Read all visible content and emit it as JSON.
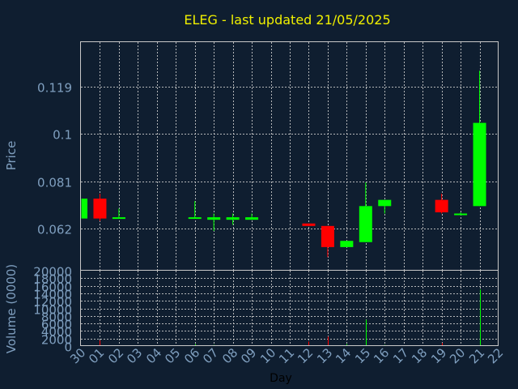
{
  "chart_data": {
    "type": "candlestick",
    "title": "ELEG - last updated 21/05/2025",
    "price_axis": {
      "label": "Price",
      "ylim": [
        0.045,
        0.137
      ],
      "ticks": [
        0.062,
        0.081,
        0.1,
        0.119
      ]
    },
    "volume_axis": {
      "label": "Volume (0000)",
      "ylim": [
        0,
        20000
      ],
      "ticks": [
        0,
        2000,
        4000,
        6000,
        8000,
        10000,
        12000,
        14000,
        16000,
        18000,
        20000
      ]
    },
    "xlabel": "Day",
    "days": [
      "30",
      "01",
      "02",
      "03",
      "04",
      "05",
      "06",
      "07",
      "08",
      "09",
      "10",
      "11",
      "12",
      "13",
      "14",
      "15",
      "16",
      "17",
      "18",
      "19",
      "20",
      "21",
      "22"
    ],
    "grid": true,
    "colors": {
      "up": "#00ff00",
      "down": "#ff0000",
      "background": "#0f1e30",
      "title": "#f0f000",
      "axis_text": "#7f9fbf"
    },
    "candles": [
      {
        "day": "30",
        "open": 0.066,
        "high": 0.074,
        "low": 0.066,
        "close": 0.074
      },
      {
        "day": "01",
        "open": 0.074,
        "high": 0.076,
        "low": 0.065,
        "close": 0.066
      },
      {
        "day": "02",
        "open": 0.066,
        "high": 0.07,
        "low": 0.066,
        "close": 0.0665
      },
      {
        "day": "06",
        "open": 0.066,
        "high": 0.073,
        "low": 0.066,
        "close": 0.0665
      },
      {
        "day": "07",
        "open": 0.0655,
        "high": 0.068,
        "low": 0.061,
        "close": 0.0665
      },
      {
        "day": "08",
        "open": 0.0655,
        "high": 0.068,
        "low": 0.0635,
        "close": 0.0665
      },
      {
        "day": "09",
        "open": 0.0655,
        "high": 0.068,
        "low": 0.0655,
        "close": 0.0665
      },
      {
        "day": "12",
        "open": 0.064,
        "high": 0.064,
        "low": 0.063,
        "close": 0.063
      },
      {
        "day": "13",
        "open": 0.063,
        "high": 0.063,
        "low": 0.0505,
        "close": 0.0545
      },
      {
        "day": "14",
        "open": 0.0545,
        "high": 0.057,
        "low": 0.0545,
        "close": 0.057
      },
      {
        "day": "15",
        "open": 0.0565,
        "high": 0.0805,
        "low": 0.0565,
        "close": 0.071
      },
      {
        "day": "16",
        "open": 0.071,
        "high": 0.0735,
        "low": 0.068,
        "close": 0.0735
      },
      {
        "day": "19",
        "open": 0.0735,
        "high": 0.076,
        "low": 0.068,
        "close": 0.0685
      },
      {
        "day": "20",
        "open": 0.0675,
        "high": 0.0685,
        "low": 0.0675,
        "close": 0.068
      },
      {
        "day": "21",
        "open": 0.071,
        "high": 0.1255,
        "low": 0.071,
        "close": 0.1045
      }
    ],
    "volumes": [
      {
        "day": "01",
        "value": 1500,
        "color": "#ff0000"
      },
      {
        "day": "06",
        "value": 500,
        "color": "#00ff00"
      },
      {
        "day": "07",
        "value": 300,
        "color": "#00ff00"
      },
      {
        "day": "12",
        "value": 1200,
        "color": "#ff0000"
      },
      {
        "day": "13",
        "value": 2500,
        "color": "#ff0000"
      },
      {
        "day": "14",
        "value": 500,
        "color": "#00ff00"
      },
      {
        "day": "15",
        "value": 7000,
        "color": "#00ff00"
      },
      {
        "day": "16",
        "value": 300,
        "color": "#00ff00"
      },
      {
        "day": "19",
        "value": 800,
        "color": "#ff0000"
      },
      {
        "day": "21",
        "value": 15000,
        "color": "#00ff00"
      }
    ]
  }
}
